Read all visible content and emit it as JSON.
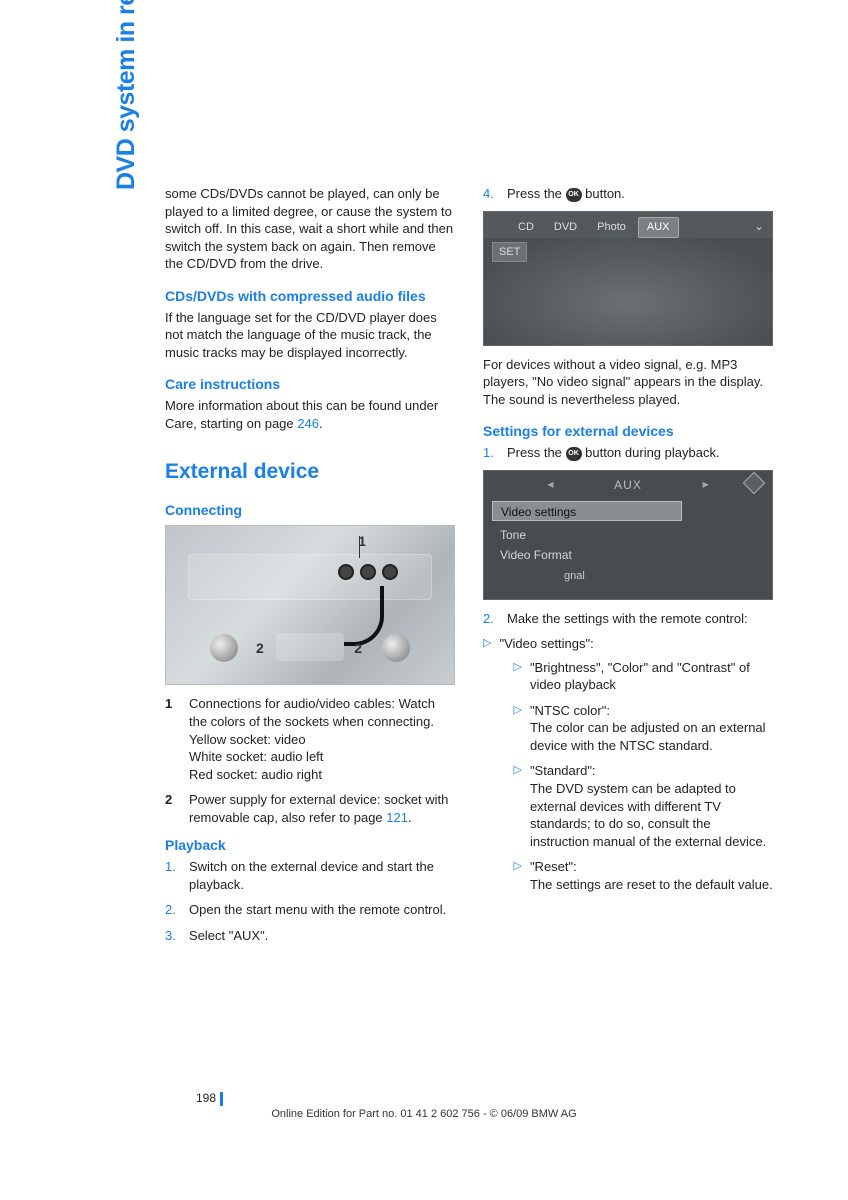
{
  "sidetab": "DVD system in rear",
  "col1": {
    "intro": "some CDs/DVDs cannot be played, can only be played to a limited degree, or cause the system to switch off. In this case, wait a short while and then switch the system back on again. Then remove the CD/DVD from the drive.",
    "h_compressed": "CDs/DVDs with compressed audio files",
    "p_compressed": "If the language set for the CD/DVD player does not match the language of the music track, the music tracks may be displayed incorrectly.",
    "h_care": "Care instructions",
    "p_care_a": "More information about this can be found under Care, starting on page ",
    "p_care_ref": "246",
    "p_care_b": ".",
    "h_external": "External device",
    "h_connecting": "Connecting",
    "fig1": {
      "l1": "1",
      "l2": "2"
    },
    "list1": {
      "n1": "1",
      "t1": "Connections for audio/video cables: Watch the colors of the sockets when connecting.\nYellow socket: video\nWhite socket: audio left\nRed socket: audio right",
      "n2": "2",
      "t2a": "Power supply for external device: socket with removable cap, also refer to page ",
      "t2ref": "121",
      "t2b": "."
    },
    "h_playback": "Playback",
    "steps": {
      "s1": "Switch on the external device and start the playback.",
      "s2": "Open the start menu with the remote control.",
      "s3": "Select \"AUX\"."
    }
  },
  "col2": {
    "step4_a": "Press the ",
    "step4_b": " button.",
    "fig2": {
      "tabs": [
        "CD",
        "DVD",
        "Photo",
        "AUX"
      ],
      "set": "SET"
    },
    "p_novideo": "For devices without a video signal, e.g. MP3 players, \"No video signal\" appears in the display. The sound is nevertheless played.",
    "h_settings": "Settings for external devices",
    "step1_a": "Press the ",
    "step1_b": " button during playback.",
    "fig3": {
      "title": "AUX",
      "r1": "Video settings",
      "r2": "Tone",
      "r3": "Video Format",
      "sig": "gnal"
    },
    "step2": "Make the settings with the remote control:",
    "bl1_head": "\"Video settings\":",
    "bl1_a": "\"Brightness\", \"Color\" and \"Contrast\" of video playback",
    "bl1_b_h": "\"NTSC color\":",
    "bl1_b_t": "The color can be adjusted on an external device with the NTSC standard.",
    "bl1_c_h": "\"Standard\":",
    "bl1_c_t": "The DVD system can be adapted to external devices with different TV standards; to do so, consult the instruction manual of the external device.",
    "bl1_d_h": "\"Reset\":",
    "bl1_d_t": "The settings are reset to the default value."
  },
  "footer": {
    "page": "198",
    "text": "Online Edition for Part no. 01 41 2 602 756 - © 06/09 BMW AG"
  },
  "ok_label": "OK"
}
